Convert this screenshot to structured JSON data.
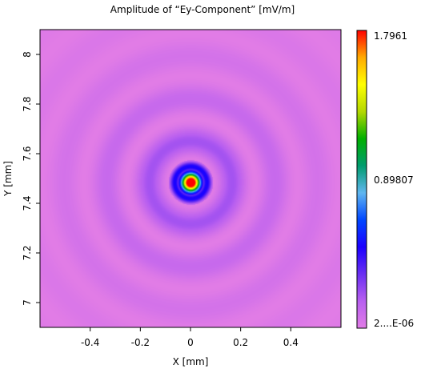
{
  "chart_data": {
    "type": "heatmap",
    "title": "Amplitude of “Ey-Component”  [mV/m]",
    "xlabel": "X [mm]",
    "ylabel": "Y [mm]",
    "xlim": [
      -0.6,
      0.6
    ],
    "ylim": [
      6.9,
      8.1
    ],
    "x_ticks": [
      {
        "value": -0.4,
        "label": "-0.4"
      },
      {
        "value": -0.2,
        "label": "-0.2"
      },
      {
        "value": 0,
        "label": "0"
      },
      {
        "value": 0.2,
        "label": "0.2"
      },
      {
        "value": 0.4,
        "label": "0.4"
      }
    ],
    "y_ticks": [
      {
        "value": 7.0,
        "label": "7"
      },
      {
        "value": 7.2,
        "label": "7.2"
      },
      {
        "value": 7.4,
        "label": "7.4"
      },
      {
        "value": 7.6,
        "label": "7.6"
      },
      {
        "value": 7.8,
        "label": "7.8"
      },
      {
        "value": 8.0,
        "label": "8"
      }
    ],
    "peak_center": {
      "x": 0.0,
      "y": 7.485
    },
    "colorbar": {
      "max_label": "1.7961",
      "mid_label": "0.89807",
      "min_label": "2....E-06",
      "max": 1.7961,
      "min": 2e-06,
      "colors": [
        "#e17ce6",
        "#b85ff0",
        "#6a2ff2",
        "#1b00ff",
        "#0046ff",
        "#5fb6f0",
        "#009c6e",
        "#00b000",
        "#b4d800",
        "#ffff00",
        "#ffaa00",
        "#ff0000"
      ]
    },
    "grid": false
  }
}
